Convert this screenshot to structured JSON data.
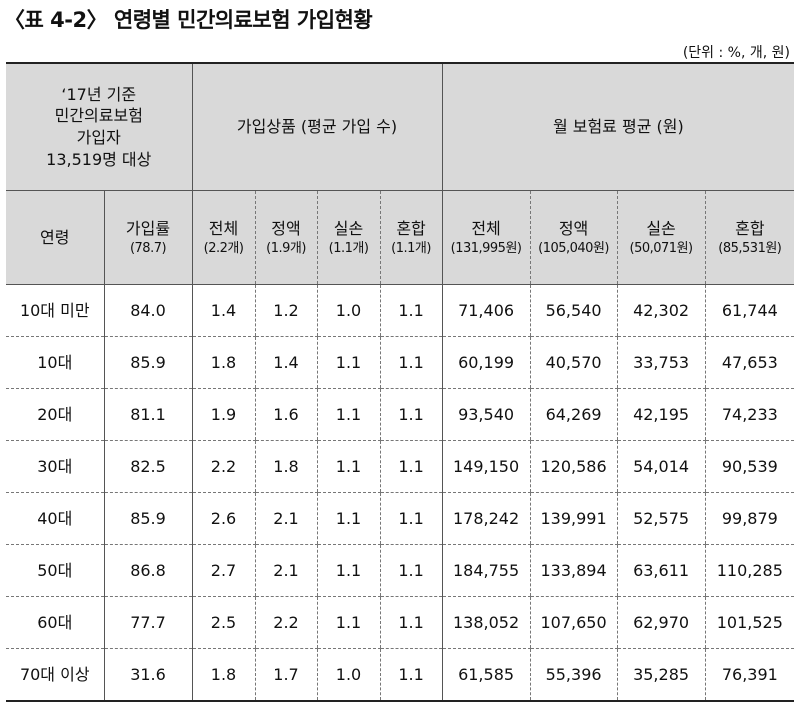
{
  "title": "〈표 4-2〉 연령별 민간의료보험 가입현황",
  "unit": "(단위 : %, 개, 원)",
  "header": {
    "corner": [
      "‘17년 기준",
      "민간의료보험",
      "가입자",
      "13,519명 대상"
    ],
    "group_products": "가입상품 (평균 가입 수)",
    "group_premium": "월 보험료 평균 (원)",
    "columns": [
      {
        "label": "연령",
        "value": ""
      },
      {
        "label": "가입률",
        "value": "(78.7)"
      },
      {
        "label": "전체",
        "value": "(2.2개)"
      },
      {
        "label": "정액",
        "value": "(1.9개)"
      },
      {
        "label": "실손",
        "value": "(1.1개)"
      },
      {
        "label": "혼합",
        "value": "(1.1개)"
      },
      {
        "label": "전체",
        "value": "(131,995원)"
      },
      {
        "label": "정액",
        "value": "(105,040원)"
      },
      {
        "label": "실손",
        "value": "(50,071원)"
      },
      {
        "label": "혼합",
        "value": "(85,531원)"
      }
    ]
  },
  "rows": [
    [
      "10대 미만",
      "84.0",
      "1.4",
      "1.2",
      "1.0",
      "1.1",
      "71,406",
      "56,540",
      "42,302",
      "61,744"
    ],
    [
      "10대",
      "85.9",
      "1.8",
      "1.4",
      "1.1",
      "1.1",
      "60,199",
      "40,570",
      "33,753",
      "47,653"
    ],
    [
      "20대",
      "81.1",
      "1.9",
      "1.6",
      "1.1",
      "1.1",
      "93,540",
      "64,269",
      "42,195",
      "74,233"
    ],
    [
      "30대",
      "82.5",
      "2.2",
      "1.8",
      "1.1",
      "1.1",
      "149,150",
      "120,586",
      "54,014",
      "90,539"
    ],
    [
      "40대",
      "85.9",
      "2.6",
      "2.1",
      "1.1",
      "1.1",
      "178,242",
      "139,991",
      "52,575",
      "99,879"
    ],
    [
      "50대",
      "86.8",
      "2.7",
      "2.1",
      "1.1",
      "1.1",
      "184,755",
      "133,894",
      "63,611",
      "110,285"
    ],
    [
      "60대",
      "77.7",
      "2.5",
      "2.2",
      "1.1",
      "1.1",
      "138,052",
      "107,650",
      "62,970",
      "101,525"
    ],
    [
      "70대 이상",
      "31.6",
      "1.8",
      "1.7",
      "1.0",
      "1.1",
      "61,585",
      "55,396",
      "35,285",
      "76,391"
    ]
  ]
}
